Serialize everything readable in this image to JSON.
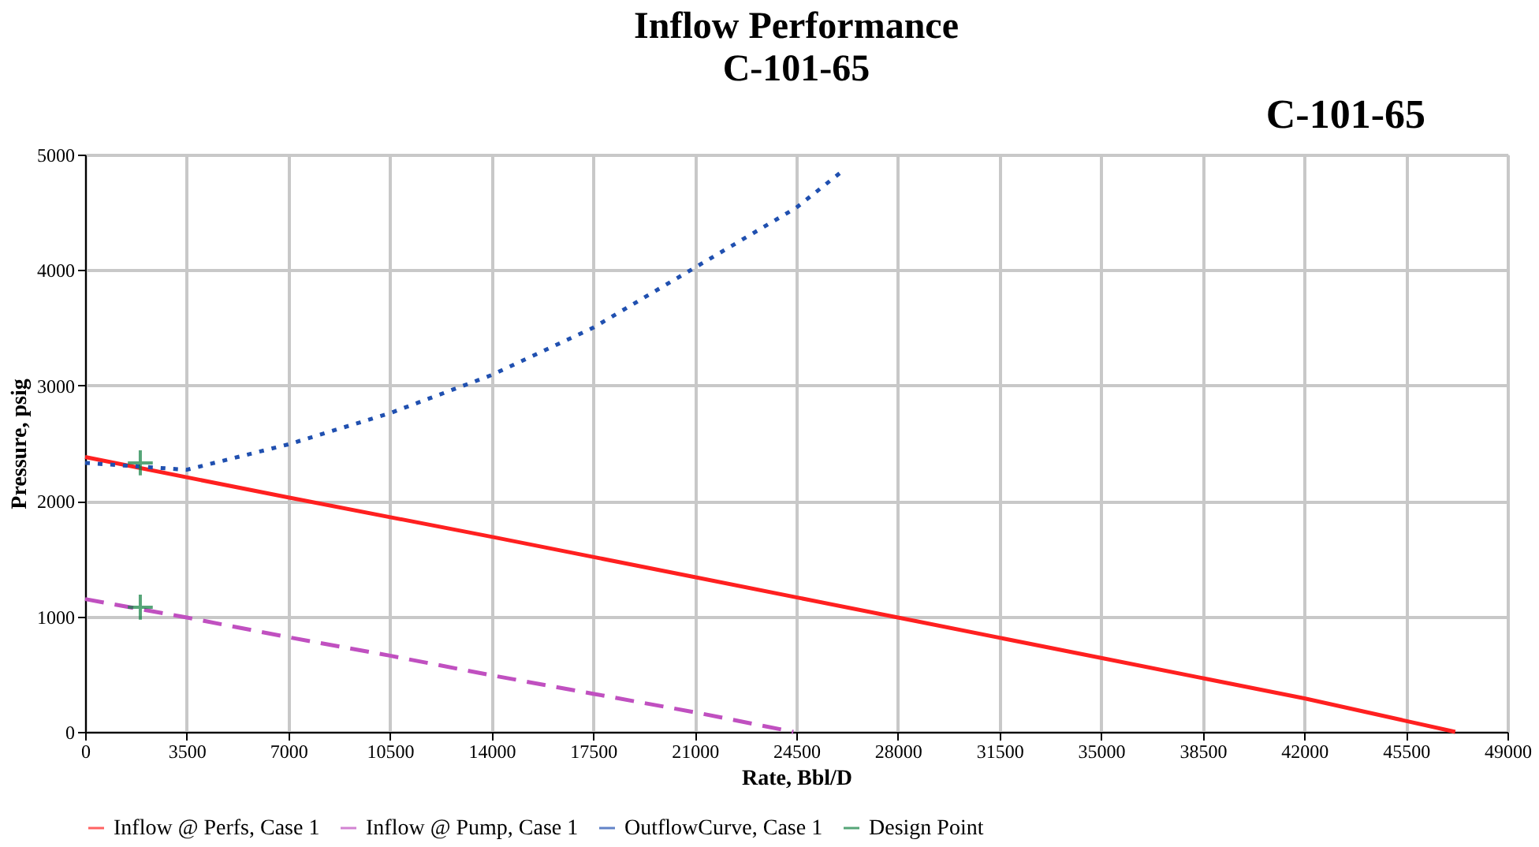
{
  "chart_data": {
    "type": "line",
    "title": "Inflow Performance",
    "subtitle": "C-101-65",
    "annotations": [
      "C-101-65"
    ],
    "xlabel": "Rate, Bbl/D",
    "ylabel": "Pressure, psig",
    "xlim": [
      0,
      49000
    ],
    "xticks": [
      0,
      3500,
      7000,
      10500,
      14000,
      17500,
      21000,
      24500,
      28000,
      31500,
      35000,
      38500,
      42000,
      45500,
      49000
    ],
    "ylim": [
      0,
      5000
    ],
    "yticks": [
      0,
      1000,
      2000,
      3000,
      4000,
      5000
    ],
    "grid": true,
    "legend": "bottom",
    "series": [
      {
        "name": "Inflow @ Perfs, Case 1",
        "color": "#ff2020",
        "line_style": "solid",
        "x": [
          0,
          7000,
          14000,
          21000,
          28000,
          35000,
          42000,
          47200
        ],
        "values": [
          2380,
          2030,
          1690,
          1340,
          990,
          640,
          290,
          0
        ]
      },
      {
        "name": "Inflow @ Pump, Case 1",
        "color": "#c050c0",
        "line_style": "dashed",
        "x": [
          0,
          3500,
          7000,
          10500,
          14000,
          17500,
          21000,
          24400
        ],
        "values": [
          1150,
          990,
          820,
          660,
          490,
          330,
          170,
          0
        ]
      },
      {
        "name": "OutflowCurve, Case 1",
        "color": "#2050b0",
        "line_style": "dotted",
        "x": [
          0,
          3500,
          7000,
          10500,
          14000,
          17500,
          21000,
          24500,
          26000
        ],
        "values": [
          2330,
          2270,
          2490,
          2760,
          3090,
          3500,
          4020,
          4540,
          4840
        ]
      },
      {
        "name": "Design Point",
        "color": "#108040",
        "type": "scatter",
        "marker": "cross",
        "x": [
          1900,
          1900
        ],
        "values": [
          2330,
          1080
        ]
      }
    ]
  }
}
